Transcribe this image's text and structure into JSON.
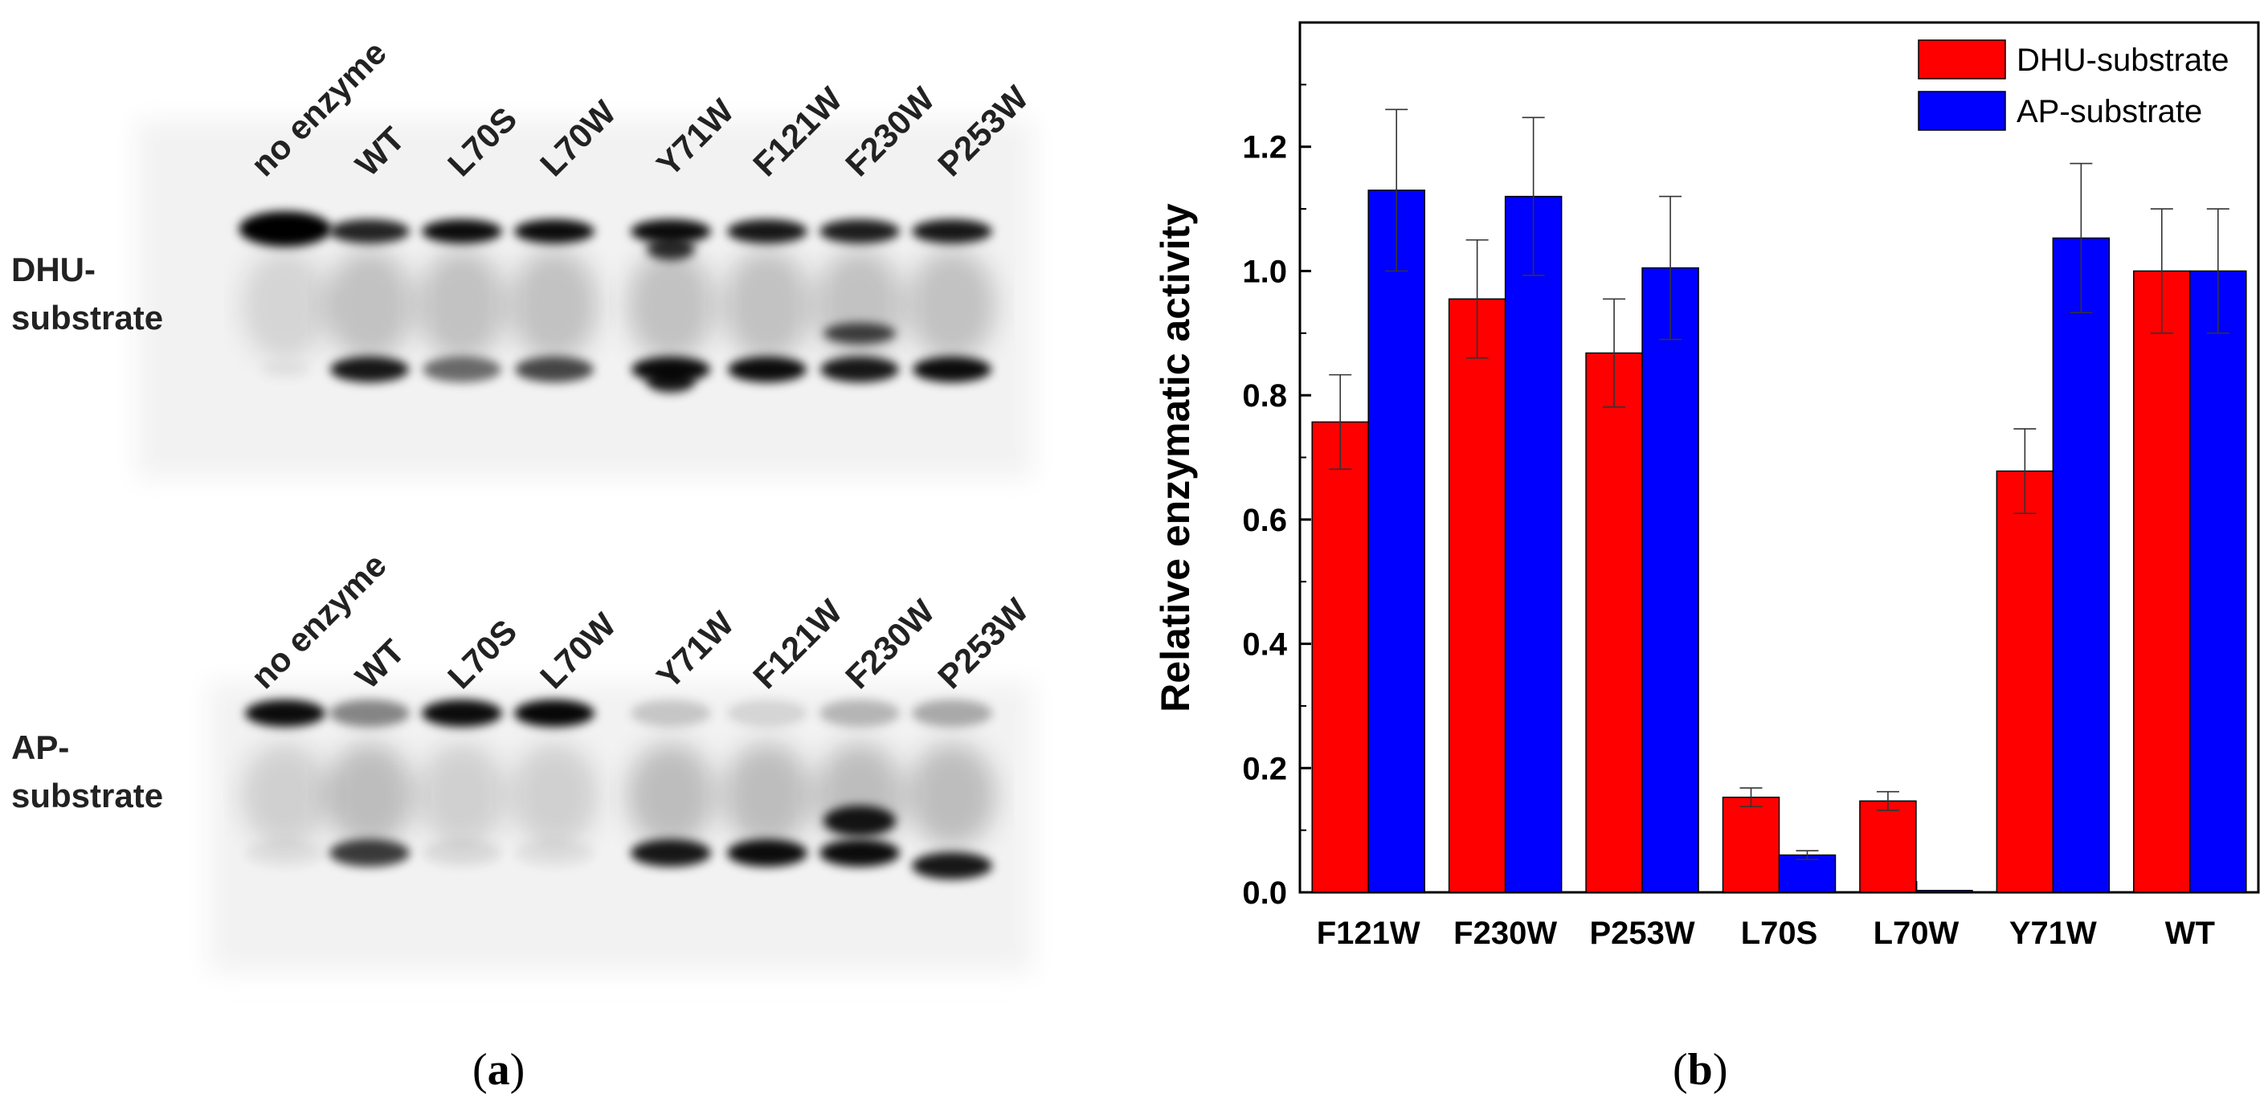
{
  "panel_a": {
    "label": "a",
    "gels": [
      {
        "name": "DHU",
        "row_label_line1": "DHU-",
        "row_label_line2": "substrate",
        "lanes": [
          "no enzyme",
          "WT",
          "L70S",
          "L70W",
          "Y71W",
          "F121W",
          "F230W",
          "P253W"
        ]
      },
      {
        "name": "AP",
        "row_label_line1": "AP-",
        "row_label_line2": "substrate",
        "lanes": [
          "no enzyme",
          "WT",
          "L70S",
          "L70W",
          "Y71W",
          "F121W",
          "F230W",
          "P253W"
        ]
      }
    ]
  },
  "panel_b": {
    "label": "b"
  },
  "chart_data": {
    "type": "bar",
    "ylabel": "Relative enzymatic activity",
    "xlabel": "",
    "ylim": [
      0,
      1.4
    ],
    "yticks": [
      "0.0",
      "0.2",
      "0.4",
      "0.6",
      "0.8",
      "1.0",
      "1.2"
    ],
    "categories": [
      "F121W",
      "F230W",
      "P253W",
      "L70S",
      "L70W",
      "Y71W",
      "WT"
    ],
    "series": [
      {
        "name": "DHU-substrate",
        "color": "#ff0000",
        "values": [
          0.757,
          0.955,
          0.868,
          0.153,
          0.147,
          0.678,
          1.0
        ],
        "errors": [
          0.076,
          0.095,
          0.087,
          0.015,
          0.015,
          0.068,
          0.1
        ]
      },
      {
        "name": "AP-substrate",
        "color": "#0000ff",
        "values": [
          1.13,
          1.12,
          1.005,
          0.06,
          0.003,
          1.053,
          1.0
        ],
        "errors": [
          0.13,
          0.127,
          0.115,
          0.007,
          0.0,
          0.12,
          0.1
        ]
      }
    ],
    "legend_position": "top-right"
  }
}
